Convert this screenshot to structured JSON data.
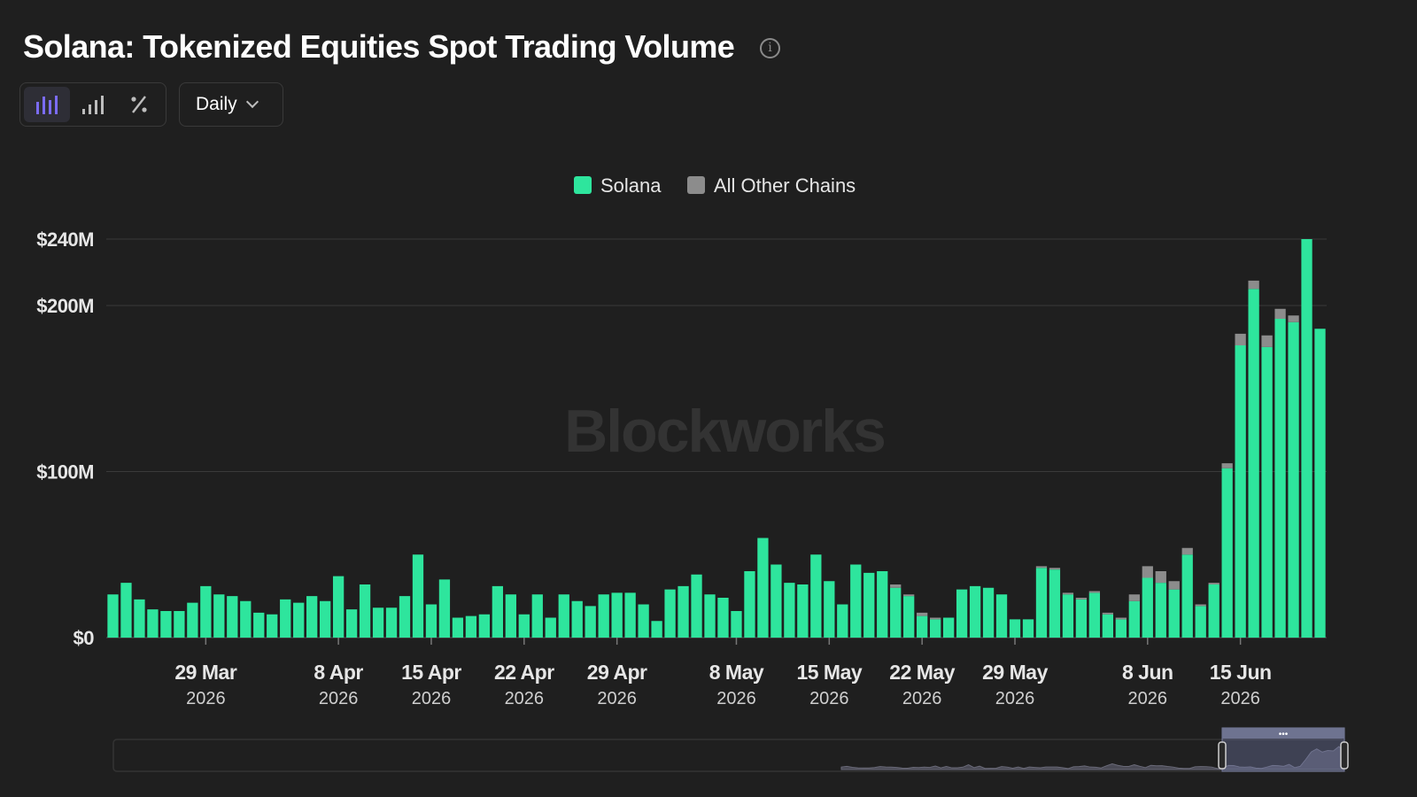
{
  "header": {
    "title": "Solana: Tokenized Equities Spot Trading Volume",
    "info_icon": "info-icon"
  },
  "toolbar": {
    "buttons": [
      {
        "icon": "bar-chart-icon",
        "active": true
      },
      {
        "icon": "ascending-bars-icon",
        "active": false
      },
      {
        "icon": "percent-icon",
        "active": false
      }
    ],
    "period": "Daily"
  },
  "watermark": "Blockworks",
  "colors": {
    "background": "#1f1f1f",
    "solana": "#2ee59d",
    "other_chains": "#8c8c8c",
    "grid": "#3a3a3a",
    "text": "#ffffff",
    "axis_text": "#e6e6e6"
  },
  "chart_data": {
    "type": "bar",
    "stacked": true,
    "legend_position": "top-center",
    "grid": true,
    "ylim": [
      0,
      240
    ],
    "y_unit": "$M",
    "y_ticks": [
      {
        "value": 0,
        "label": "$0"
      },
      {
        "value": 100,
        "label": "$100M"
      },
      {
        "value": 200,
        "label": "$200M"
      },
      {
        "value": 240,
        "label": "$240M"
      }
    ],
    "x_ticks": [
      {
        "index": 7,
        "label": "29 Mar",
        "year": "2026"
      },
      {
        "index": 17,
        "label": "8 Apr",
        "year": "2026"
      },
      {
        "index": 24,
        "label": "15 Apr",
        "year": "2026"
      },
      {
        "index": 31,
        "label": "22 Apr",
        "year": "2026"
      },
      {
        "index": 38,
        "label": "29 Apr",
        "year": "2026"
      },
      {
        "index": 47,
        "label": "8 May",
        "year": "2026"
      },
      {
        "index": 54,
        "label": "15 May",
        "year": "2026"
      },
      {
        "index": 61,
        "label": "22 May",
        "year": "2026"
      },
      {
        "index": 68,
        "label": "29 May",
        "year": "2026"
      },
      {
        "index": 78,
        "label": "8 Jun",
        "year": "2026"
      },
      {
        "index": 85,
        "label": "15 Jun",
        "year": "2026"
      }
    ],
    "series": [
      {
        "name": "Solana",
        "color": "#2ee59d",
        "values": [
          26,
          33,
          23,
          17,
          16,
          16,
          21,
          31,
          26,
          25,
          22,
          15,
          14,
          23,
          21,
          25,
          22,
          37,
          17,
          32,
          18,
          18,
          25,
          50,
          20,
          35,
          12,
          13,
          14,
          31,
          26,
          14,
          26,
          12,
          26,
          22,
          19,
          26,
          27,
          27,
          20,
          10,
          29,
          31,
          38,
          26,
          24,
          16,
          40,
          60,
          44,
          33,
          32,
          50,
          34,
          20,
          44,
          39,
          40,
          30,
          25,
          13,
          11,
          12,
          29,
          31,
          30,
          26,
          11,
          11,
          42,
          41,
          26,
          23,
          27,
          14,
          11,
          22,
          36,
          33,
          29,
          50,
          19,
          32,
          102,
          176,
          210,
          175,
          192,
          190,
          240,
          186
        ]
      },
      {
        "name": "All Other Chains",
        "color": "#8c8c8c",
        "values": [
          0,
          0,
          0,
          0,
          0,
          0,
          0,
          0,
          0,
          0,
          0,
          0,
          0,
          0,
          0,
          0,
          0,
          0,
          0,
          0,
          0,
          0,
          0,
          0,
          0,
          0,
          0,
          0,
          0,
          0,
          0,
          0,
          0,
          0,
          0,
          0,
          0,
          0,
          0,
          0,
          0,
          0,
          0,
          0,
          0,
          0,
          0,
          0,
          0,
          0,
          0,
          0,
          0,
          0,
          0,
          0,
          0,
          0,
          0,
          2,
          1,
          2,
          1,
          0,
          0,
          0,
          0,
          0,
          0,
          0,
          1,
          1,
          1,
          1,
          1,
          1,
          1,
          4,
          7,
          7,
          5,
          4,
          1,
          1,
          3,
          7,
          5,
          7,
          6,
          4,
          0,
          0
        ]
      }
    ]
  }
}
